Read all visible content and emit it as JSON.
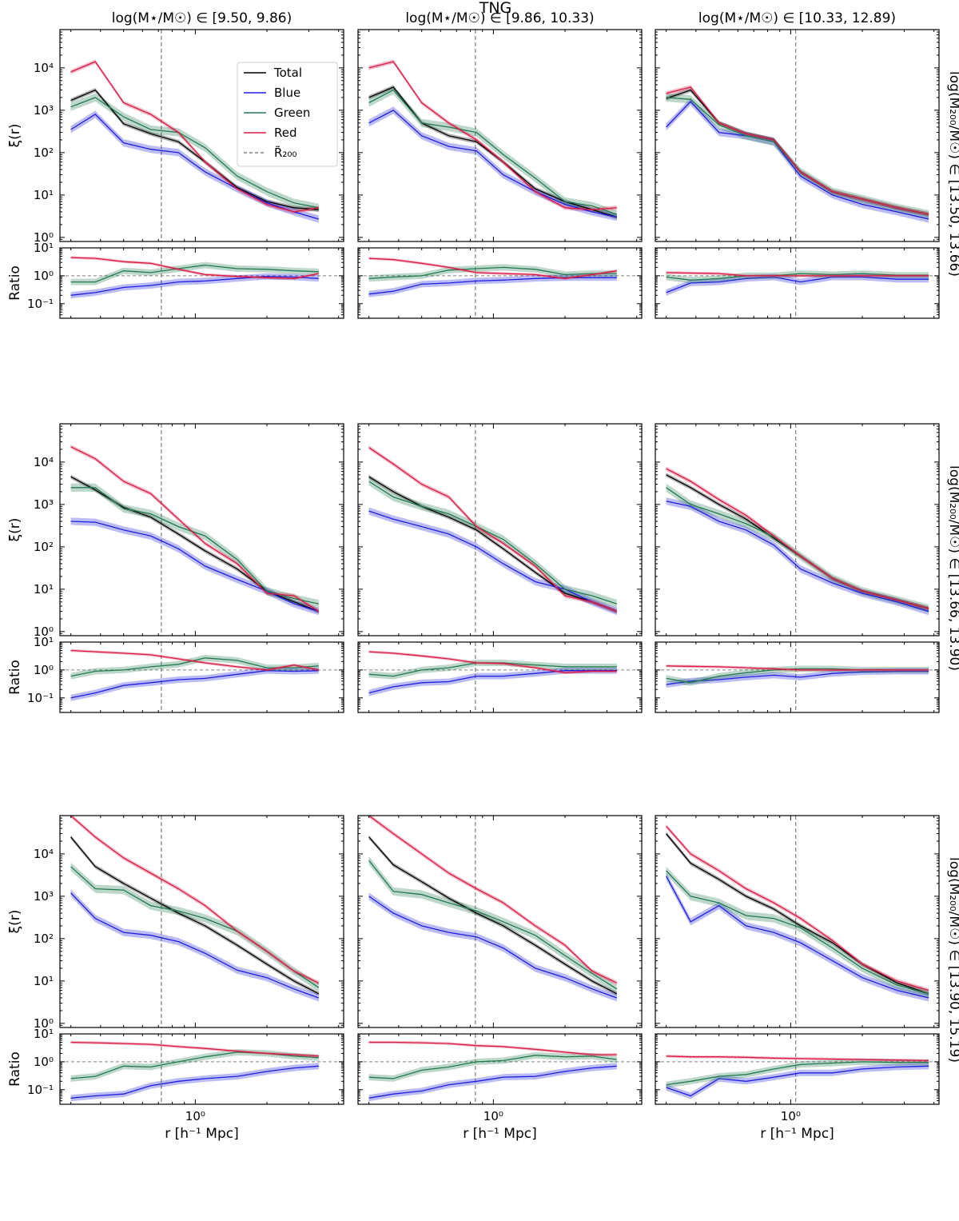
{
  "figure_title": "TNG",
  "chart_data": {
    "type": "line",
    "xscale": "log",
    "yscale": "log",
    "xlim": [
      0.27,
      4.2
    ],
    "xticks": [
      {
        "value": 1,
        "label": "10⁰"
      }
    ],
    "xlabel": "r [h⁻¹ Mpc]",
    "ylabel_main": "ξ(r)",
    "ylabel_ratio": "Ratio",
    "main_ylim": [
      0.8,
      80000
    ],
    "main_yticks": [
      {
        "value": 1,
        "label": "10⁰"
      },
      {
        "value": 10,
        "label": "10¹"
      },
      {
        "value": 100,
        "label": "10²"
      },
      {
        "value": 1000,
        "label": "10³"
      },
      {
        "value": 10000,
        "label": "10⁴"
      }
    ],
    "ratio_ylim": [
      0.03,
      10
    ],
    "ratio_yticks": [
      {
        "value": 0.1,
        "label": "10⁻¹"
      },
      {
        "value": 1,
        "label": "10⁰"
      },
      {
        "value": 10,
        "label": "10¹"
      }
    ],
    "ratio_reference": 1,
    "col_titles": [
      "log(M⋆/M☉) ∈ [9.50, 9.86)",
      "log(M⋆/M☉) ∈ [9.86, 10.33)",
      "log(M⋆/M☉) ∈ [10.33, 12.89)"
    ],
    "row_titles": [
      "log(M₂₀₀/M☉) ∈ [13.50, 13.66)",
      "log(M₂₀₀/M☉) ∈ [13.66, 13.90)",
      "log(M₂₀₀/M☉) ∈ [13.90, 15.19)"
    ],
    "legend": {
      "placement": "top-right of first panel",
      "entries": [
        {
          "label": "Total",
          "color": "#000000",
          "style": "solid"
        },
        {
          "label": "Blue",
          "color": "#1f1fdf",
          "style": "solid"
        },
        {
          "label": "Green",
          "color": "#237a52",
          "style": "solid"
        },
        {
          "label": "Red",
          "color": "#d81b45",
          "style": "solid"
        },
        {
          "label": "R̃₂₀₀",
          "color": "#808080",
          "style": "dashed"
        }
      ]
    },
    "colors": {
      "Total": "#000000",
      "Blue": "#1f1fdf",
      "Green": "#237a52",
      "Red": "#d81b45",
      "ref": "#808080"
    },
    "r200": [
      0.72,
      0.84,
      1.05
    ],
    "x": [
      0.3,
      0.38,
      0.5,
      0.65,
      0.85,
      1.1,
      1.5,
      2.0,
      2.6,
      3.3
    ],
    "x_col3": [
      0.3,
      0.38,
      0.5,
      0.65,
      0.85,
      1.1,
      1.5,
      2.0,
      2.8,
      3.8
    ],
    "panels": [
      {
        "row": 0,
        "col": 0,
        "Total": [
          1700,
          3000,
          480,
          280,
          180,
          60,
          15,
          7,
          5,
          4.5
        ],
        "Blue": [
          350,
          800,
          170,
          120,
          100,
          35,
          14,
          6.5,
          4,
          2.7
        ],
        "Green": [
          1200,
          2000,
          700,
          350,
          300,
          130,
          28,
          12,
          6.5,
          5
        ],
        "Red": [
          8000,
          14000,
          1500,
          800,
          300,
          60,
          14,
          6,
          4,
          5
        ],
        "ratio_Blue": [
          0.2,
          0.25,
          0.38,
          0.45,
          0.6,
          0.65,
          0.8,
          0.95,
          0.9,
          0.8
        ],
        "ratio_Green": [
          0.6,
          0.6,
          1.5,
          1.3,
          1.8,
          2.4,
          1.8,
          1.7,
          1.5,
          1.4
        ],
        "ratio_Red": [
          4.5,
          4.2,
          3.2,
          2.8,
          1.7,
          1.1,
          0.95,
          0.85,
          0.8,
          1.2
        ]
      },
      {
        "row": 0,
        "col": 1,
        "Total": [
          2000,
          3500,
          500,
          250,
          180,
          60,
          14,
          7,
          4.5,
          3
        ],
        "Blue": [
          500,
          1000,
          250,
          140,
          110,
          30,
          12,
          6,
          4,
          3
        ],
        "Green": [
          1500,
          3000,
          500,
          400,
          300,
          90,
          25,
          7,
          5.5,
          3.5
        ],
        "Red": [
          10000,
          14000,
          1500,
          500,
          200,
          60,
          12,
          5,
          4.5,
          5
        ],
        "ratio_Blue": [
          0.22,
          0.28,
          0.5,
          0.55,
          0.65,
          0.7,
          0.8,
          0.85,
          0.85,
          0.85
        ],
        "ratio_Green": [
          0.8,
          0.9,
          1.0,
          1.6,
          1.8,
          2.0,
          1.7,
          1.1,
          1.2,
          1.2
        ],
        "ratio_Red": [
          4.2,
          3.8,
          2.8,
          2.0,
          1.3,
          1.2,
          1.1,
          0.8,
          1.1,
          1.5
        ]
      },
      {
        "row": 0,
        "col": 2,
        "Total": [
          1900,
          3000,
          500,
          280,
          200,
          35,
          12,
          8,
          5,
          3.5
        ],
        "Blue": [
          400,
          1600,
          300,
          250,
          180,
          28,
          10,
          6,
          4,
          2.7
        ],
        "Green": [
          2000,
          1800,
          450,
          250,
          180,
          35,
          12,
          8,
          5,
          3.5
        ],
        "Red": [
          2500,
          3500,
          500,
          280,
          200,
          35,
          12,
          8,
          5,
          3.5
        ],
        "ratio_Blue": [
          0.25,
          0.55,
          0.6,
          0.8,
          0.9,
          0.6,
          0.9,
          0.9,
          0.75,
          0.75
        ],
        "ratio_Green": [
          0.9,
          0.7,
          0.8,
          1.0,
          1.0,
          1.2,
          1.1,
          1.2,
          1.05,
          1.05
        ],
        "ratio_Red": [
          1.3,
          1.25,
          1.2,
          1.0,
          1.0,
          1.0,
          1.0,
          1.0,
          1.0,
          1.0
        ]
      },
      {
        "row": 1,
        "col": 0,
        "Total": [
          4500,
          2200,
          850,
          500,
          200,
          80,
          30,
          9,
          5,
          3
        ],
        "Blue": [
          400,
          380,
          250,
          180,
          90,
          35,
          17,
          9,
          4.5,
          3
        ],
        "Green": [
          2500,
          2500,
          800,
          600,
          300,
          180,
          50,
          9,
          6,
          4.5
        ],
        "Red": [
          23000,
          12000,
          3500,
          1800,
          450,
          120,
          40,
          8,
          7,
          3
        ],
        "ratio_Blue": [
          0.1,
          0.15,
          0.28,
          0.35,
          0.45,
          0.5,
          0.7,
          0.95,
          0.9,
          0.95
        ],
        "ratio_Green": [
          0.6,
          0.9,
          1.0,
          1.3,
          1.6,
          2.7,
          2.2,
          1.2,
          1.2,
          1.4
        ],
        "ratio_Red": [
          5.0,
          4.5,
          4.0,
          3.5,
          2.5,
          1.8,
          1.3,
          1.0,
          1.5,
          1.0
        ]
      },
      {
        "row": 1,
        "col": 1,
        "Total": [
          4500,
          2000,
          900,
          500,
          250,
          90,
          25,
          8,
          5,
          3
        ],
        "Blue": [
          700,
          450,
          300,
          200,
          100,
          40,
          15,
          10,
          5,
          3
        ],
        "Green": [
          3500,
          1500,
          900,
          600,
          300,
          150,
          40,
          10,
          7,
          4.5
        ],
        "Red": [
          22000,
          9000,
          3000,
          1500,
          300,
          120,
          35,
          7,
          5,
          3
        ],
        "ratio_Blue": [
          0.15,
          0.25,
          0.35,
          0.38,
          0.6,
          0.6,
          0.75,
          0.95,
          0.95,
          0.95
        ],
        "ratio_Green": [
          0.7,
          0.6,
          1.0,
          1.2,
          1.8,
          1.8,
          1.5,
          1.3,
          1.3,
          1.3
        ],
        "ratio_Red": [
          4.5,
          4.0,
          3.2,
          2.5,
          1.8,
          1.7,
          1.2,
          0.8,
          0.9,
          0.9
        ]
      },
      {
        "row": 1,
        "col": 2,
        "Total": [
          5000,
          2500,
          1000,
          450,
          160,
          60,
          18,
          9,
          5.5,
          3.5
        ],
        "Blue": [
          1200,
          900,
          400,
          250,
          110,
          30,
          14,
          8,
          5,
          3
        ],
        "Green": [
          2500,
          1000,
          600,
          350,
          170,
          60,
          18,
          9,
          5.5,
          3.5
        ],
        "Red": [
          7000,
          3500,
          1300,
          550,
          180,
          60,
          18,
          9,
          5.5,
          3.5
        ],
        "ratio_Blue": [
          0.3,
          0.4,
          0.45,
          0.55,
          0.65,
          0.55,
          0.75,
          0.85,
          0.9,
          0.9
        ],
        "ratio_Green": [
          0.5,
          0.35,
          0.6,
          0.8,
          1.0,
          1.1,
          1.1,
          1.0,
          1.0,
          1.0
        ],
        "ratio_Red": [
          1.4,
          1.35,
          1.3,
          1.2,
          1.1,
          1.0,
          1.0,
          1.0,
          1.0,
          1.0
        ]
      },
      {
        "row": 2,
        "col": 0,
        "Total": [
          25000,
          5000,
          2000,
          900,
          400,
          200,
          70,
          25,
          10,
          5
        ],
        "Blue": [
          1200,
          300,
          140,
          120,
          85,
          45,
          18,
          12,
          6.5,
          4
        ],
        "Green": [
          5000,
          1500,
          1400,
          600,
          450,
          300,
          150,
          50,
          17,
          7
        ],
        "Red": [
          80000,
          25000,
          8000,
          3500,
          1500,
          600,
          150,
          50,
          17,
          9
        ],
        "ratio_Blue": [
          0.05,
          0.06,
          0.07,
          0.14,
          0.2,
          0.25,
          0.3,
          0.45,
          0.6,
          0.7
        ],
        "ratio_Green": [
          0.25,
          0.3,
          0.7,
          0.65,
          1.0,
          1.5,
          2.2,
          2.0,
          1.6,
          1.4
        ],
        "ratio_Red": [
          5.0,
          4.8,
          4.5,
          4.2,
          3.5,
          3.0,
          2.4,
          2.0,
          1.8,
          1.6
        ]
      },
      {
        "row": 2,
        "col": 1,
        "Total": [
          25000,
          5500,
          2200,
          900,
          400,
          200,
          70,
          25,
          10,
          5
        ],
        "Blue": [
          1000,
          400,
          200,
          140,
          110,
          60,
          20,
          12,
          6.5,
          4
        ],
        "Green": [
          7000,
          1300,
          1100,
          700,
          450,
          250,
          120,
          40,
          15,
          6.5
        ],
        "Red": [
          80000,
          30000,
          10000,
          3500,
          1500,
          700,
          200,
          70,
          17,
          9
        ],
        "ratio_Blue": [
          0.05,
          0.07,
          0.09,
          0.15,
          0.2,
          0.28,
          0.3,
          0.45,
          0.6,
          0.7
        ],
        "ratio_Green": [
          0.28,
          0.25,
          0.5,
          0.65,
          1.0,
          1.1,
          1.7,
          1.5,
          1.6,
          1.2
        ],
        "ratio_Red": [
          5.0,
          5.0,
          4.8,
          4.5,
          3.8,
          3.5,
          2.8,
          2.2,
          1.8,
          1.8
        ]
      },
      {
        "row": 2,
        "col": 2,
        "Total": [
          30000,
          6000,
          2500,
          1000,
          500,
          200,
          80,
          25,
          9,
          5
        ],
        "Blue": [
          3000,
          250,
          600,
          200,
          140,
          80,
          30,
          12,
          6,
          4
        ],
        "Green": [
          4000,
          1000,
          700,
          350,
          300,
          180,
          60,
          20,
          8,
          5
        ],
        "Red": [
          45000,
          10000,
          4000,
          1500,
          700,
          300,
          90,
          25,
          10,
          6
        ],
        "ratio_Blue": [
          0.12,
          0.06,
          0.25,
          0.2,
          0.28,
          0.4,
          0.4,
          0.55,
          0.65,
          0.7
        ],
        "ratio_Green": [
          0.15,
          0.2,
          0.3,
          0.35,
          0.55,
          0.8,
          0.9,
          1.0,
          0.95,
          0.95
        ],
        "ratio_Red": [
          1.6,
          1.5,
          1.5,
          1.45,
          1.35,
          1.3,
          1.25,
          1.2,
          1.15,
          1.1
        ]
      }
    ]
  }
}
